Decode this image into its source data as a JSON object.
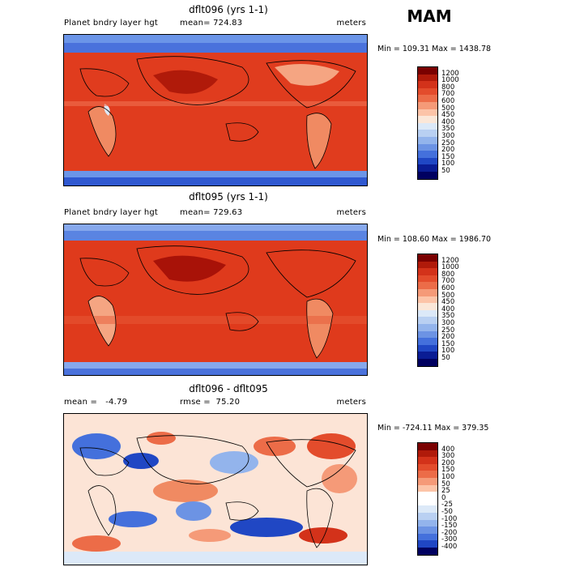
{
  "season": "MAM",
  "colors": {
    "map_base": "#e03c1e",
    "border": "#000000"
  },
  "panels": [
    {
      "title": "dflt096 (yrs 1-1)",
      "left_label": "Planet bndry layer hgt",
      "mean_label": "mean= 724.83",
      "units": "meters",
      "minmax": "Min = 109.31 Max = 1438.78",
      "levels": [
        "1200",
        "1000",
        "800",
        "700",
        "600",
        "500",
        "450",
        "400",
        "350",
        "300",
        "250",
        "200",
        "150",
        "100",
        "50"
      ],
      "colors": [
        "#7a0000",
        "#b01a0a",
        "#d3321a",
        "#e34c2c",
        "#ec6c48",
        "#f59a78",
        "#fcc4a8",
        "#fbe7d8",
        "#dce9f8",
        "#b9d0f2",
        "#93b4ec",
        "#6c93e4",
        "#4470dc",
        "#2047c4",
        "#0a1c94",
        "#000060"
      ]
    },
    {
      "title": "dflt095 (yrs 1-1)",
      "left_label": "Planet bndry layer hgt",
      "mean_label": "mean= 729.63",
      "units": "meters",
      "minmax": "Min = 108.60 Max = 1986.70",
      "levels": [
        "1200",
        "1000",
        "800",
        "700",
        "600",
        "500",
        "450",
        "400",
        "350",
        "300",
        "250",
        "200",
        "150",
        "100",
        "50"
      ],
      "colors": [
        "#7a0000",
        "#b01a0a",
        "#d3321a",
        "#e34c2c",
        "#ec6c48",
        "#f59a78",
        "#fcc4a8",
        "#fbe7d8",
        "#dce9f8",
        "#b9d0f2",
        "#93b4ec",
        "#6c93e4",
        "#4470dc",
        "#2047c4",
        "#0a1c94",
        "#000060"
      ]
    },
    {
      "title": "dflt096 - dflt095",
      "left_label": "mean =   -4.79",
      "mean_label": "rmse =  75.20",
      "units": "meters",
      "minmax": "Min = -724.11 Max = 379.35",
      "levels": [
        "400",
        "300",
        "200",
        "150",
        "100",
        "50",
        "25",
        "0",
        "-25",
        "-50",
        "-100",
        "-150",
        "-200",
        "-300",
        "-400"
      ],
      "colors": [
        "#7a0000",
        "#b01a0a",
        "#d3321a",
        "#e34c2c",
        "#ec6c48",
        "#f59a78",
        "#fcc4a8",
        "#ffffff",
        "#ffffff",
        "#dce9f8",
        "#b9d0f2",
        "#93b4ec",
        "#6c93e4",
        "#4470dc",
        "#2047c4",
        "#000060"
      ]
    }
  ]
}
